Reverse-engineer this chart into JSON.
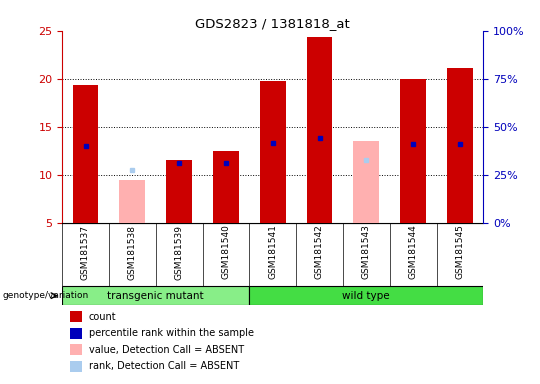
{
  "title": "GDS2823 / 1381818_at",
  "samples": [
    "GSM181537",
    "GSM181538",
    "GSM181539",
    "GSM181540",
    "GSM181541",
    "GSM181542",
    "GSM181543",
    "GSM181544",
    "GSM181545"
  ],
  "count_values": [
    19.3,
    null,
    11.5,
    12.5,
    19.8,
    24.3,
    null,
    20.0,
    21.1
  ],
  "percentile_rank": [
    13.0,
    null,
    11.2,
    11.2,
    13.3,
    13.8,
    null,
    13.2,
    13.2
  ],
  "absent_value": [
    null,
    9.5,
    null,
    null,
    null,
    null,
    13.5,
    null,
    null
  ],
  "absent_rank": [
    null,
    10.5,
    null,
    null,
    null,
    null,
    11.5,
    null,
    null
  ],
  "ylim_left": [
    5,
    25
  ],
  "ylim_right": [
    0,
    100
  ],
  "yticks_left": [
    5,
    10,
    15,
    20,
    25
  ],
  "yticks_right": [
    0,
    25,
    50,
    75,
    100
  ],
  "yticklabels_right": [
    "0%",
    "25%",
    "50%",
    "75%",
    "100%"
  ],
  "groups": [
    {
      "label": "transgenic mutant",
      "indices": [
        0,
        1,
        2,
        3
      ],
      "color": "#88ee88"
    },
    {
      "label": "wild type",
      "indices": [
        4,
        5,
        6,
        7,
        8
      ],
      "color": "#44dd44"
    }
  ],
  "bar_width": 0.55,
  "red_color": "#cc0000",
  "blue_color": "#0000bb",
  "pink_color": "#ffb0b0",
  "light_blue_color": "#aaccee",
  "left_tick_color": "#cc0000",
  "right_tick_color": "#0000bb",
  "bg_sample": "#cccccc",
  "legend_items": [
    {
      "color": "#cc0000",
      "label": "count"
    },
    {
      "color": "#0000bb",
      "label": "percentile rank within the sample"
    },
    {
      "color": "#ffb0b0",
      "label": "value, Detection Call = ABSENT"
    },
    {
      "color": "#aaccee",
      "label": "rank, Detection Call = ABSENT"
    }
  ]
}
